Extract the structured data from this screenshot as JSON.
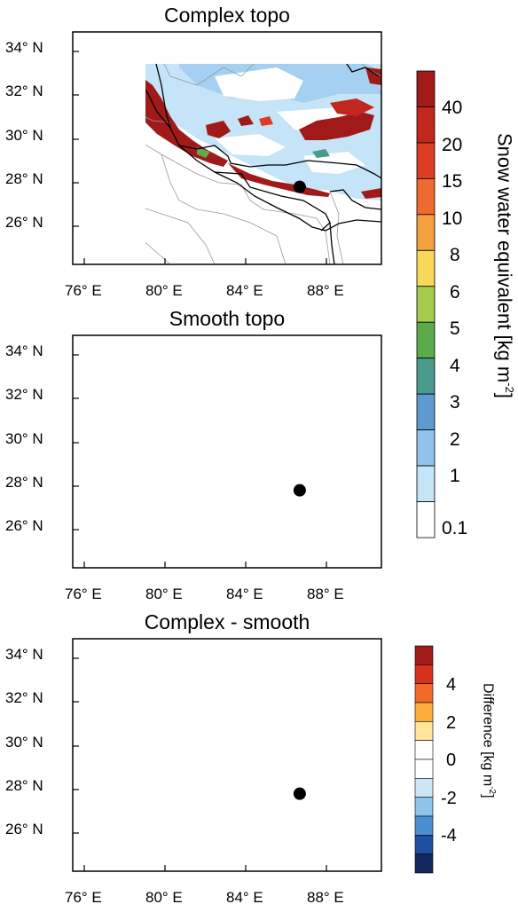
{
  "panels": [
    {
      "title": "Complex topo",
      "lat_labels": [
        "34° N",
        "32° N",
        "30° N",
        "28° N",
        "26° N"
      ],
      "lon_labels": [
        "76° E",
        "80° E",
        "84° E",
        "88° E"
      ]
    },
    {
      "title": "Smooth topo",
      "lat_labels": [
        "34° N",
        "32° N",
        "30° N",
        "28° N",
        "26° N"
      ],
      "lon_labels": [
        "76° E",
        "80° E",
        "84° E",
        "88° E"
      ]
    },
    {
      "title": "Complex - smooth",
      "lat_labels": [
        "34° N",
        "32° N",
        "30° N",
        "28° N",
        "26° N"
      ],
      "lon_labels": [
        "76° E",
        "80° E",
        "84° E",
        "88° E"
      ]
    }
  ],
  "swe_colorbar": {
    "title": "Snow water equivalent [kg m-2]",
    "title_main": "Snow water equivalent [kg m",
    "title_sup": "-2",
    "title_end": "]",
    "labels": [
      "40",
      "20",
      "15",
      "10",
      "8",
      "6",
      "5",
      "4",
      "3",
      "2",
      "1",
      "0.1"
    ],
    "colors": [
      "#a01a1a",
      "#c2271f",
      "#dc3b24",
      "#ee6a30",
      "#f4a040",
      "#f7d85a",
      "#a6cc4f",
      "#5daa4c",
      "#4a9a8e",
      "#5f99cf",
      "#8fc3ec",
      "#c6e4f8",
      "#ffffff"
    ]
  },
  "diff_colorbar": {
    "title": "Difference [kg m-2]",
    "title_main": "Difference [kg m",
    "title_sup": "-2",
    "title_end": "]",
    "labels": [
      "4",
      "2",
      "0",
      "-2",
      "-4"
    ],
    "colors": [
      "#a01a1a",
      "#d7301f",
      "#f06a2a",
      "#fbad3c",
      "#fee59a",
      "#ffffff",
      "#ffffff",
      "#cde6f7",
      "#8ec3ea",
      "#4b8fd0",
      "#1f4f9f",
      "#14285e"
    ]
  },
  "marker": {
    "name": "station",
    "lon": 86.9,
    "lat": 27.6
  }
}
